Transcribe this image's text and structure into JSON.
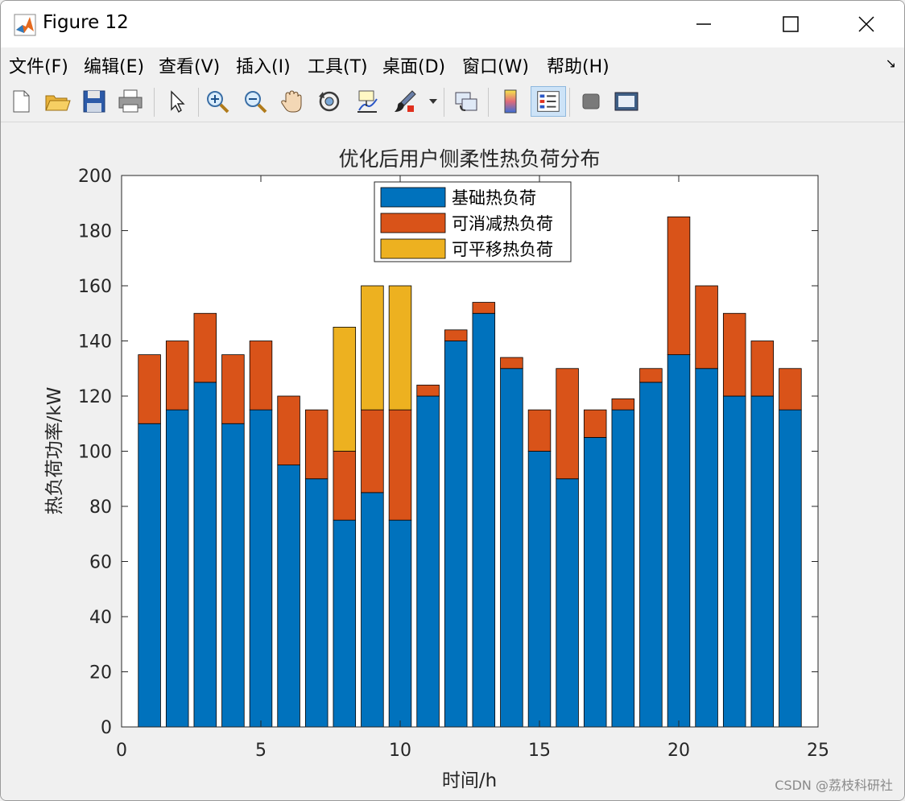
{
  "window": {
    "title": "Figure 12"
  },
  "menu": [
    {
      "label": "文件(F)"
    },
    {
      "label": "编辑(E)"
    },
    {
      "label": "查看(V)"
    },
    {
      "label": "插入(I)"
    },
    {
      "label": "工具(T)"
    },
    {
      "label": "桌面(D)"
    },
    {
      "label": "窗口(W)"
    },
    {
      "label": "帮助(H)"
    }
  ],
  "toolbar": [
    {
      "icon": "new-figure-icon"
    },
    {
      "icon": "open-file-icon"
    },
    {
      "icon": "save-icon"
    },
    {
      "icon": "print-icon"
    },
    {
      "icon": "edit-plot-arrow-icon"
    },
    {
      "icon": "zoom-in-icon"
    },
    {
      "icon": "zoom-out-icon"
    },
    {
      "icon": "pan-hand-icon"
    },
    {
      "icon": "rotate-3d-icon"
    },
    {
      "icon": "data-cursor-icon"
    },
    {
      "icon": "brush-icon"
    },
    {
      "icon": "link-plot-icon"
    },
    {
      "icon": "colorbar-icon"
    },
    {
      "icon": "legend-icon"
    },
    {
      "icon": "hide-plot-tools-icon"
    },
    {
      "icon": "show-plot-tools-icon"
    }
  ],
  "colors": {
    "base": "#0072bd",
    "reducible": "#d95319",
    "shiftable": "#edb120"
  },
  "chart_data": {
    "type": "bar",
    "stacked": true,
    "title": "优化后用户侧柔性热负荷分布",
    "xlabel": "时间/h",
    "ylabel": "热负荷功率/kW",
    "xlim": [
      0,
      25
    ],
    "ylim": [
      0,
      200
    ],
    "xticks": [
      "0",
      "5",
      "10",
      "15",
      "20",
      "25"
    ],
    "yticks": [
      "0",
      "20",
      "40",
      "60",
      "80",
      "100",
      "120",
      "140",
      "160",
      "180",
      "200"
    ],
    "legend_position": "top-center",
    "x": [
      1,
      2,
      3,
      4,
      5,
      6,
      7,
      8,
      9,
      10,
      11,
      12,
      13,
      14,
      15,
      16,
      17,
      18,
      19,
      20,
      21,
      22,
      23,
      24
    ],
    "series": [
      {
        "name": "基础热负荷",
        "values": [
          110,
          115,
          125,
          110,
          115,
          95,
          90,
          75,
          85,
          75,
          120,
          140,
          150,
          130,
          100,
          90,
          105,
          115,
          125,
          135,
          130,
          120,
          120,
          115
        ]
      },
      {
        "name": "可消减热负荷",
        "values": [
          25,
          25,
          25,
          25,
          25,
          25,
          25,
          25,
          30,
          40,
          4,
          4,
          4,
          4,
          15,
          40,
          10,
          4,
          5,
          50,
          30,
          30,
          20,
          15
        ]
      },
      {
        "name": "可平移热负荷",
        "values": [
          0,
          0,
          0,
          0,
          0,
          0,
          0,
          45,
          45,
          45,
          0,
          0,
          0,
          0,
          0,
          0,
          0,
          0,
          0,
          0,
          0,
          0,
          0,
          0
        ]
      }
    ]
  },
  "watermark": "CSDN @荔枝科研社"
}
